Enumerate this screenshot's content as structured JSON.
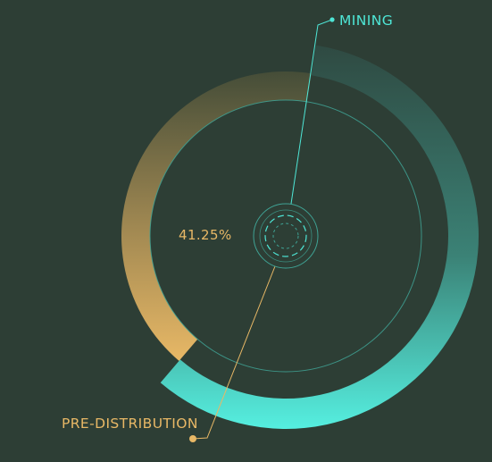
{
  "segments": [
    {
      "name": "MINING",
      "percent": 58.75,
      "color_start": "#2f4a42",
      "color_end": "#55efe0"
    },
    {
      "name": "PRE-DISTRIBUTION",
      "percent": 41.25,
      "color_start": "#454d38",
      "color_end": "#e8b866"
    }
  ],
  "labels": {
    "mining": "MINING",
    "pre_distribution": "PRE-DISTRIBUTION",
    "pre_distribution_percent": "41.25%"
  },
  "colors": {
    "background": "#2d3e35",
    "mining_accent": "#4ee6d6",
    "pre_accent": "#e8b866"
  }
}
